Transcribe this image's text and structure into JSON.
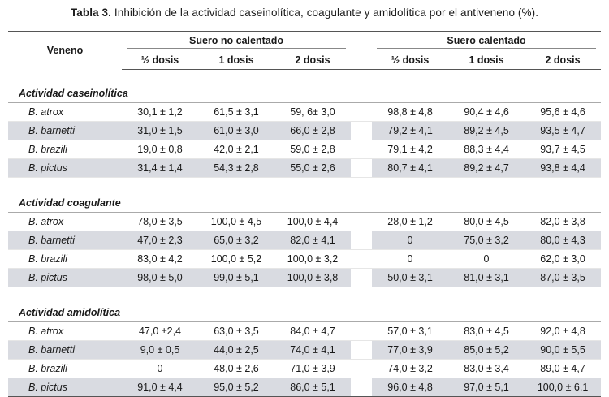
{
  "caption": {
    "label": "Tabla 3.",
    "text": "Inhibición de la actividad caseinolítica, coagulante y amidolítica por el antiveneno (%)."
  },
  "header": {
    "veneno": "Veneno",
    "group1": "Suero no calentado",
    "group2": "Suero calentado",
    "subcols": [
      "½ dosis",
      "1 dosis",
      "2 dosis",
      "½ dosis",
      "1 dosis",
      "2 dosis"
    ]
  },
  "sections": [
    {
      "title": "Actividad caseinolítica",
      "rows": [
        {
          "species": "B. atrox",
          "values": [
            "30,1 ± 1,2",
            "61,5 ± 3,1",
            "59, 6± 3,0",
            "98,8 ± 4,8",
            "90,4 ± 4,6",
            "95,6 ± 4,6"
          ]
        },
        {
          "species": "B. barnetti",
          "values": [
            "31,0 ± 1,5",
            "61,0 ± 3,0",
            "66,0 ± 2,8",
            "79,2 ± 4,1",
            "89,2 ± 4,5",
            "93,5 ± 4,7"
          ]
        },
        {
          "species": "B. brazili",
          "values": [
            "19,0 ± 0,8",
            "42,0 ± 2,1",
            "59,0 ± 2,8",
            "79,1 ± 4,2",
            "88,3 ± 4,4",
            "93,7 ± 4,5"
          ]
        },
        {
          "species": "B. pictus",
          "values": [
            "31,4 ± 1,4",
            "54,3 ± 2,8",
            "55,0 ± 2,6",
            "80,7 ± 4,1",
            "89,2 ± 4,7",
            "93,8 ± 4,4"
          ]
        }
      ]
    },
    {
      "title": "Actividad coagulante",
      "rows": [
        {
          "species": "B. atrox",
          "values": [
            "78,0 ± 3,5",
            "100,0 ± 4,5",
            "100,0 ± 4,4",
            "28,0 ± 1,2",
            "80,0 ± 4,5",
            "82,0 ± 3,8"
          ]
        },
        {
          "species": "B. barnetti",
          "values": [
            "47,0 ± 2,3",
            "65,0 ± 3,2",
            "82,0 ± 4,1",
            "0",
            "75,0 ± 3,2",
            "80,0 ± 4,3"
          ]
        },
        {
          "species": "B. brazili",
          "values": [
            "83,0 ± 4,2",
            "100,0 ± 5,2",
            "100,0 ± 3,2",
            "0",
            "0",
            "62,0 ± 3,0"
          ]
        },
        {
          "species": "B. pictus",
          "values": [
            "98,0 ± 5,0",
            "99,0 ± 5,1",
            "100,0 ± 3,8",
            "50,0 ± 3,1",
            "81,0 ± 3,1",
            "87,0 ± 3,5"
          ]
        }
      ]
    },
    {
      "title": "Actividad amidolítica",
      "rows": [
        {
          "species": "B. atrox",
          "values": [
            "47,0 ±2,4",
            "63,0 ± 3,5",
            "84,0 ± 4,7",
            "57,0 ± 3,1",
            "83,0 ± 4,5",
            "92,0 ± 4,8"
          ]
        },
        {
          "species": "B. barnetti",
          "values": [
            "9,0 ± 0,5",
            "44,0 ± 2,5",
            "74,0 ± 4,1",
            "77,0 ± 3,9",
            "85,0 ± 5,2",
            "90,0 ± 5,5"
          ]
        },
        {
          "species": "B. brazili",
          "values": [
            "0",
            "48,0 ± 2,6",
            "71,0 ± 3,9",
            "74,0 ± 3,2",
            "83,0 ± 3,4",
            "89,0 ± 4,7"
          ]
        },
        {
          "species": "B. pictus",
          "values": [
            "91,0 ± 4,4",
            "95,0 ± 5,2",
            "86,0 ± 5,1",
            "96,0 ± 4,8",
            "97,0 ± 5,1",
            "100,0 ± 6,1"
          ]
        }
      ]
    }
  ]
}
